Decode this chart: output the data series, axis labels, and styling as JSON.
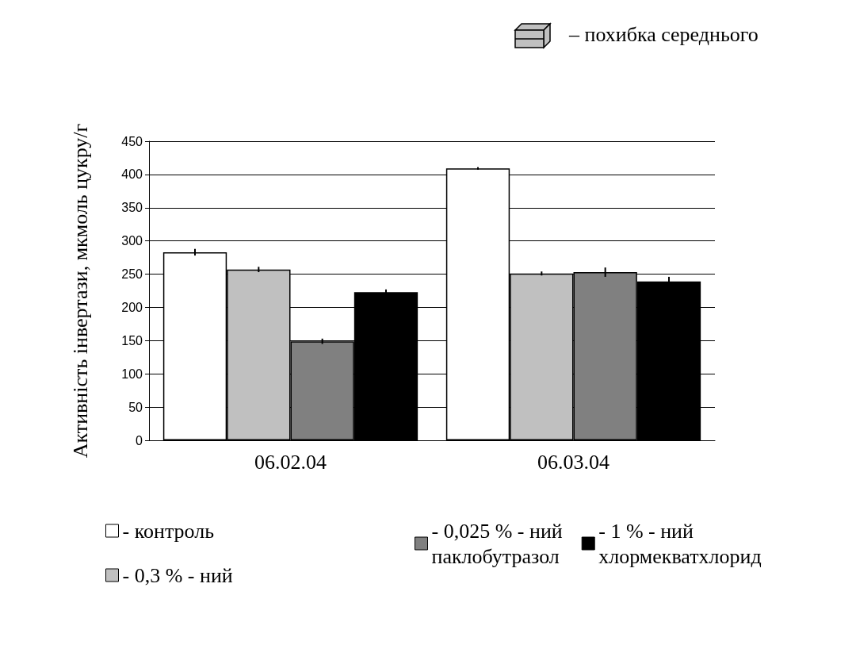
{
  "chart_data": {
    "type": "bar",
    "ylabel": "Активність інвертази, мкмоль цукру/г",
    "categories": [
      "06.02.04",
      "06.03.04"
    ],
    "series": [
      {
        "name": "- контроль",
        "color": "#ffffff",
        "values": [
          283,
          409
        ],
        "errors": [
          5,
          2
        ]
      },
      {
        "name": "- 0,3 % - ний",
        "color": "#c0c0c0",
        "values": [
          257,
          251
        ],
        "errors": [
          4,
          3
        ]
      },
      {
        "name": "- 0,025 % - ний паклобутразол",
        "color": "#808080",
        "values": [
          149,
          253
        ],
        "errors": [
          4,
          7
        ]
      },
      {
        "name": "- 1 % - ний хлормекватхлорид",
        "color": "#000000",
        "values": [
          223,
          239
        ],
        "errors": [
          4,
          7
        ]
      }
    ],
    "ylim": [
      0,
      450
    ],
    "yticks": [
      0,
      50,
      100,
      150,
      200,
      250,
      300,
      350,
      400,
      450
    ],
    "grid": "y",
    "legend": "bottom",
    "annotations": [
      "– похибка середнього"
    ]
  }
}
